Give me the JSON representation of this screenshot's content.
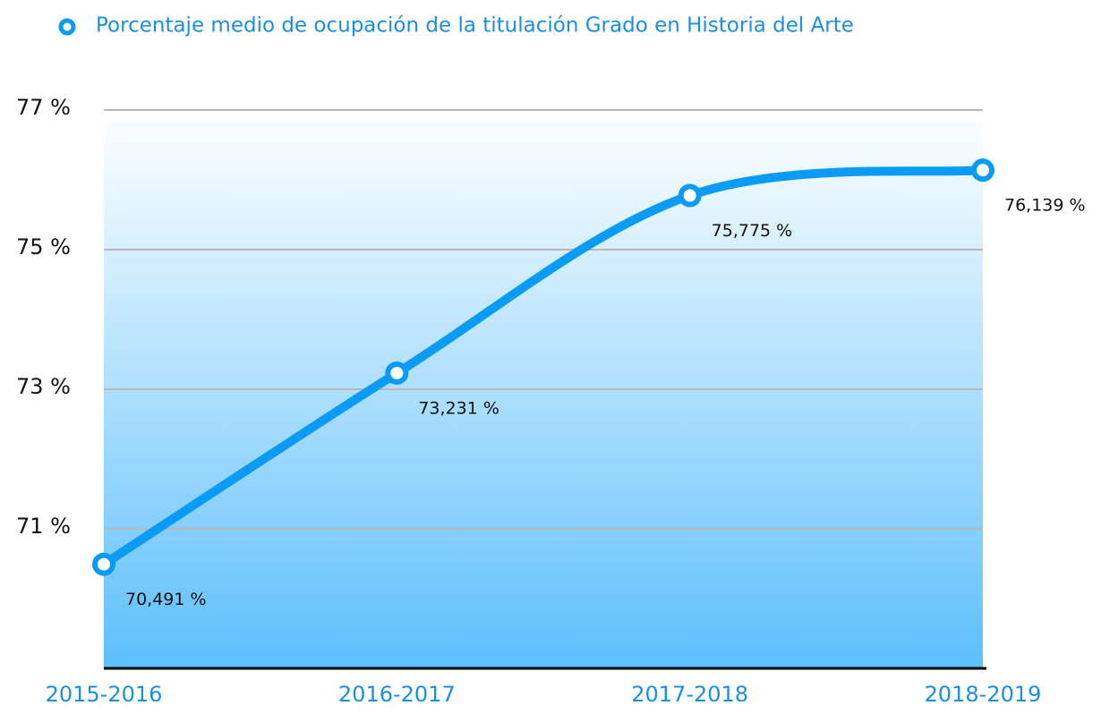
{
  "chart_data": {
    "type": "line",
    "categories": [
      "2015-2016",
      "2016-2017",
      "2017-2018",
      "2018-2019"
    ],
    "series": [
      {
        "name": "Porcentaje medio de ocupación de la titulación Grado en Historia del Arte",
        "color": "#0a9cf5",
        "values": [
          70.491,
          73.231,
          75.775,
          76.139
        ],
        "value_labels": [
          "70,491 %",
          "73,231 %",
          "75,775 %",
          "76,139 %"
        ]
      }
    ],
    "ylim": [
      69,
      77
    ],
    "yticks": [
      {
        "value": 71,
        "label": "71 %"
      },
      {
        "value": 73,
        "label": "73 %"
      },
      {
        "value": 75,
        "label": "75 %"
      },
      {
        "value": 77,
        "label": "77 %"
      }
    ],
    "grid": true,
    "legend": "top"
  }
}
